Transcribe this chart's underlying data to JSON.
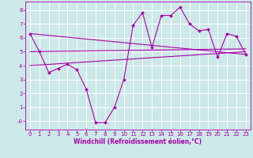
{
  "xlabel": "Windchill (Refroidissement éolien,°C)",
  "background_color": "#cce8e8",
  "grid_color": "#ffffff",
  "line_color": "#aa00aa",
  "xlim": [
    -0.5,
    23.5
  ],
  "ylim": [
    -0.6,
    8.6
  ],
  "xticks": [
    0,
    1,
    2,
    3,
    4,
    5,
    6,
    7,
    8,
    9,
    10,
    11,
    12,
    13,
    14,
    15,
    16,
    17,
    18,
    19,
    20,
    21,
    22,
    23
  ],
  "yticks": [
    0,
    1,
    2,
    3,
    4,
    5,
    6,
    7,
    8
  ],
  "series1_x": [
    0,
    1,
    2,
    3,
    4,
    5,
    6,
    7,
    8,
    9,
    10,
    11,
    12,
    13,
    14,
    15,
    16,
    17,
    18,
    19,
    20,
    21,
    22,
    23
  ],
  "series1_y": [
    6.3,
    5.0,
    3.5,
    3.8,
    4.1,
    3.7,
    2.3,
    -0.1,
    -0.1,
    1.0,
    3.0,
    6.9,
    7.8,
    5.3,
    7.6,
    7.6,
    8.2,
    7.0,
    6.5,
    6.6,
    4.6,
    6.3,
    6.1,
    4.8
  ],
  "line1_x": [
    0,
    23
  ],
  "line1_y": [
    6.3,
    4.8
  ],
  "line2_x": [
    0,
    23
  ],
  "line2_y": [
    5.0,
    5.2
  ],
  "line3_x": [
    0,
    23
  ],
  "line3_y": [
    4.0,
    5.0
  ],
  "xlabel_fontsize": 5.5,
  "tick_fontsize": 5.0
}
